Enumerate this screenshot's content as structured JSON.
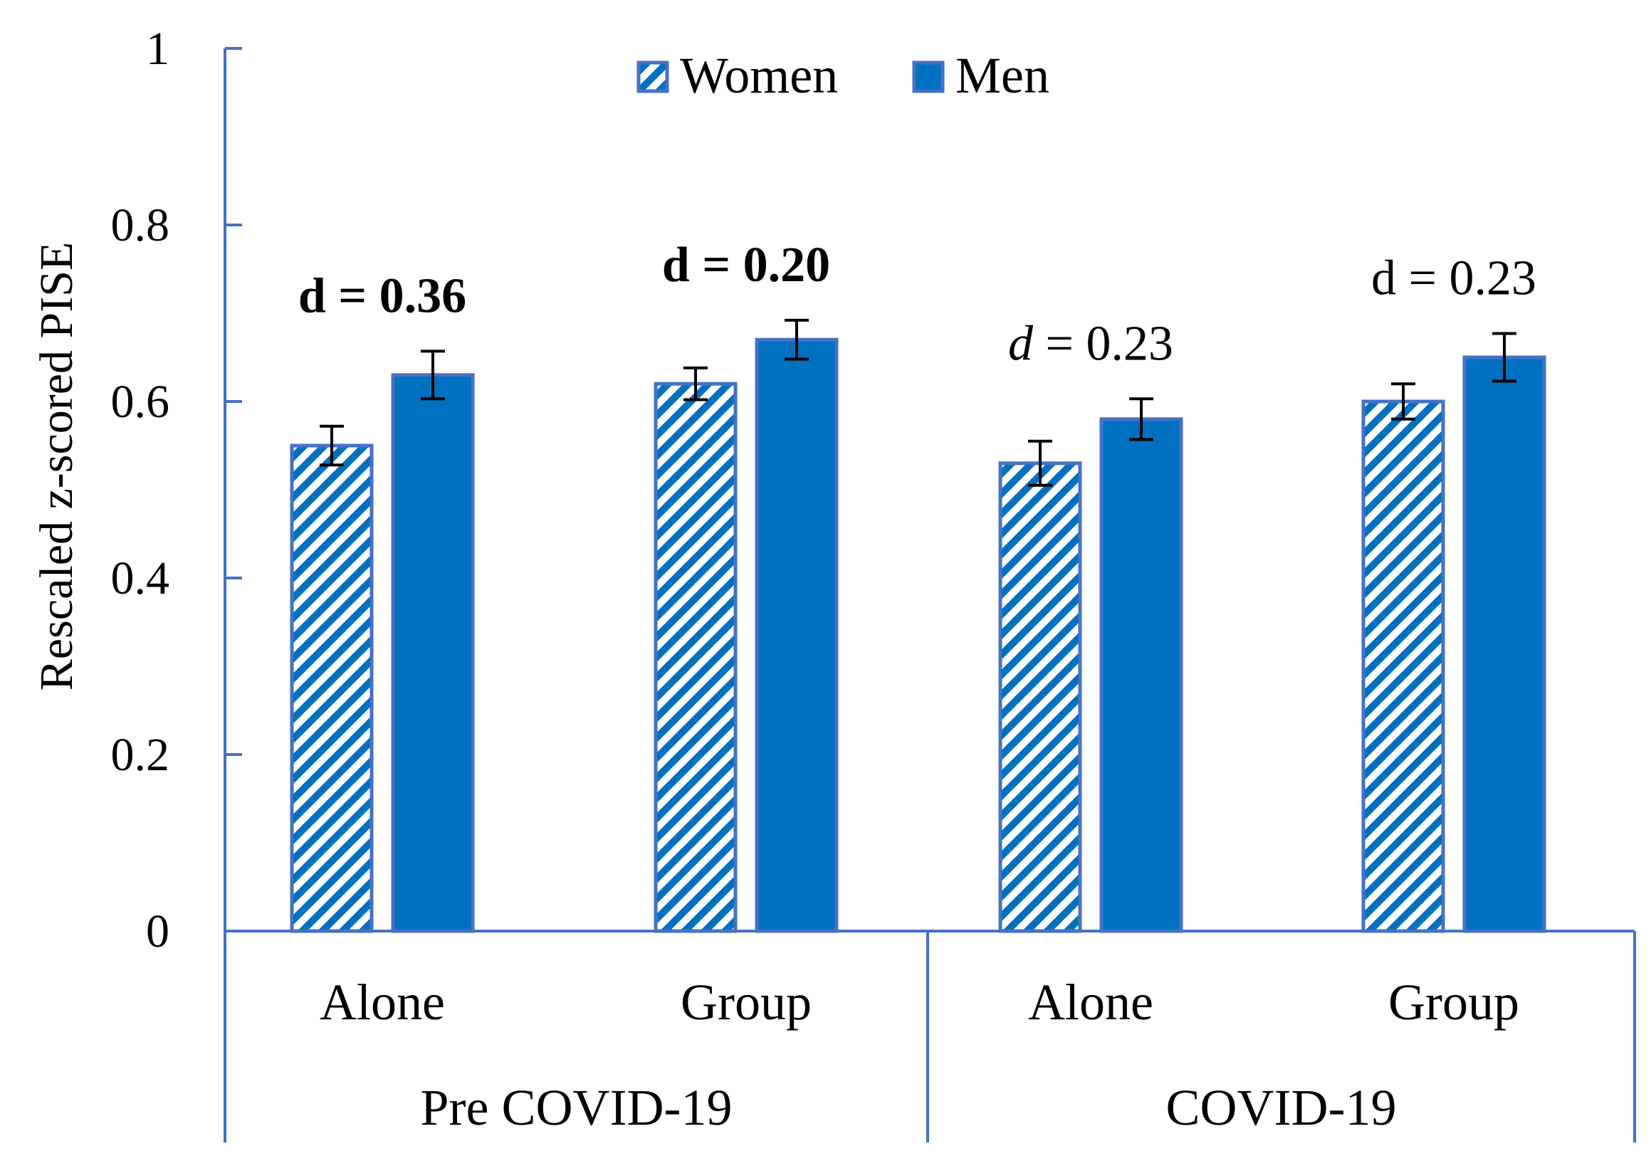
{
  "chart_data": {
    "type": "bar",
    "title": "",
    "ylabel": "Rescaled z-scored PISE",
    "xlabel": "",
    "ylim": [
      0,
      1
    ],
    "yticks": [
      0,
      0.2,
      0.4,
      0.6,
      0.8,
      1
    ],
    "ytick_labels": [
      "0",
      "0.2",
      "0.4",
      "0.6",
      "0.8",
      "1"
    ],
    "grid": false,
    "legend_position": "top-center",
    "groups": [
      {
        "label": "Pre COVID-19",
        "categories": [
          "Alone",
          "Group"
        ]
      },
      {
        "label": "COVID-19",
        "categories": [
          "Alone",
          "Group"
        ]
      }
    ],
    "categories": [
      "Alone",
      "Group",
      "Alone",
      "Group"
    ],
    "series": [
      {
        "name": "Women",
        "pattern": "diagonal-stripes",
        "values": [
          0.55,
          0.62,
          0.53,
          0.6
        ],
        "errors": [
          0.022,
          0.018,
          0.025,
          0.02
        ]
      },
      {
        "name": "Men",
        "pattern": "solid",
        "values": [
          0.63,
          0.67,
          0.58,
          0.65
        ],
        "errors": [
          0.027,
          0.022,
          0.023,
          0.027
        ]
      }
    ],
    "annotations": [
      {
        "prefix": "d",
        "text": " = 0.36",
        "style": "bold",
        "category_index": 0
      },
      {
        "prefix": "d",
        "text": " = 0.20",
        "style": "bold",
        "category_index": 1
      },
      {
        "prefix": "d",
        "text": " = 0.23",
        "style": "italic-d",
        "category_index": 2
      },
      {
        "prefix": "d",
        "text": " = 0.23",
        "style": "normal",
        "category_index": 3
      }
    ],
    "colors": {
      "bar_fill": "#0070C0",
      "bar_border": "#4472C4",
      "axis": "#4472C4",
      "error_bar": "#000000"
    }
  }
}
